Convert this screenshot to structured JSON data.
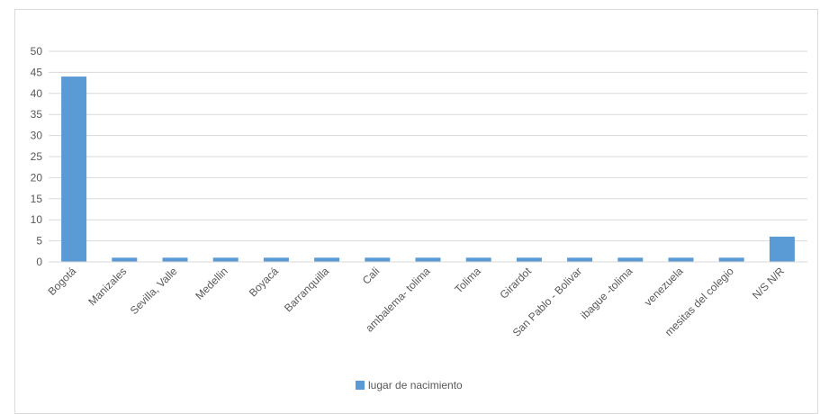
{
  "chart_data": {
    "type": "bar",
    "categories": [
      "Bogotá",
      "Manizales",
      "Sevilla, Valle",
      "Medellin",
      "Boyacá",
      "Barranquilla",
      "Cali",
      "ambalema- tolima",
      "Tolima",
      "Girardot",
      "San Pablo - Bolivar",
      "ibague -tolima",
      "venezuela",
      "mesitas del colegio",
      "N/S N/R"
    ],
    "series": [
      {
        "name": "lugar de nacimiento",
        "values": [
          44,
          1,
          1,
          1,
          1,
          1,
          1,
          1,
          1,
          1,
          1,
          1,
          1,
          1,
          6
        ],
        "color": "#5b9bd5"
      }
    ],
    "ylim": [
      0,
      50
    ],
    "yticks": [
      0,
      5,
      10,
      15,
      20,
      25,
      30,
      35,
      40,
      45,
      50
    ],
    "grid": true,
    "legend_position": "bottom"
  }
}
